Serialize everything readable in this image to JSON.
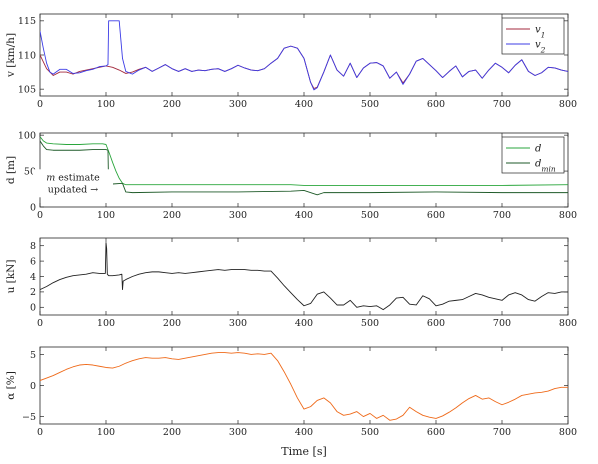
{
  "chart_data": [
    {
      "type": "line",
      "ylabel": "v [km/h]",
      "xlim": [
        0,
        800
      ],
      "ylim": [
        104,
        116
      ],
      "xticks": [
        0,
        100,
        200,
        300,
        400,
        500,
        600,
        700,
        800
      ],
      "yticks": [
        105,
        110,
        115
      ],
      "legend": {
        "placement": "top-right",
        "entries": [
          "v1",
          "v2"
        ]
      },
      "series": [
        {
          "name": "v1",
          "color": "#a3283c",
          "x": [
            0,
            5,
            10,
            15,
            20,
            30,
            40,
            50,
            60,
            70,
            80,
            90,
            100,
            110,
            120,
            130,
            140,
            150,
            160,
            170,
            180,
            190,
            200,
            210,
            220,
            230,
            240,
            250,
            260,
            270,
            280,
            290,
            300,
            310,
            320,
            330,
            340,
            350,
            360,
            370,
            380,
            390,
            400,
            410,
            415,
            420,
            430,
            440,
            450,
            460,
            470,
            480,
            490,
            500,
            510,
            520,
            530,
            540,
            550,
            560,
            570,
            580,
            590,
            600,
            610,
            620,
            630,
            640,
            650,
            660,
            670,
            680,
            690,
            700,
            710,
            720,
            730,
            740,
            750,
            760,
            770,
            780,
            790,
            800
          ],
          "values": [
            110,
            109,
            108,
            107.5,
            107,
            107.5,
            107.5,
            107.2,
            107.6,
            107.8,
            108,
            108.2,
            108.4,
            108.2,
            107.8,
            107.3,
            107.5,
            107.9,
            108.2,
            107.6,
            108.1,
            108.6,
            108,
            107.6,
            108,
            107.6,
            107.8,
            107.7,
            107.9,
            108,
            107.6,
            108,
            108.5,
            108.1,
            107.8,
            107.7,
            108,
            108.8,
            109.5,
            111,
            111.3,
            111,
            109.5,
            106,
            105.1,
            105.3,
            107.5,
            110,
            107.8,
            106.9,
            108.8,
            106.7,
            108.1,
            108.8,
            108.9,
            108.4,
            106.6,
            107.5,
            105.9,
            107.2,
            109.1,
            109.5,
            108.6,
            107.7,
            106.7,
            107.6,
            108.4,
            106.8,
            107.6,
            107.8,
            106.6,
            107.8,
            108.8,
            108.2,
            107.4,
            108.5,
            109.3,
            107.6,
            107,
            107.4,
            108.2,
            108.1,
            107.8,
            107.6
          ]
        },
        {
          "name": "v2",
          "color": "#3c3ce6",
          "x": [
            0,
            5,
            10,
            15,
            20,
            30,
            40,
            50,
            60,
            70,
            80,
            90,
            100,
            103,
            104,
            120,
            125,
            130,
            140,
            150,
            160,
            170,
            180,
            190,
            200,
            210,
            220,
            230,
            240,
            250,
            260,
            270,
            280,
            290,
            300,
            310,
            320,
            330,
            340,
            350,
            360,
            370,
            380,
            390,
            400,
            410,
            415,
            420,
            430,
            440,
            450,
            460,
            470,
            480,
            490,
            500,
            510,
            520,
            530,
            540,
            550,
            560,
            570,
            580,
            590,
            600,
            610,
            620,
            630,
            640,
            650,
            660,
            670,
            680,
            690,
            700,
            710,
            720,
            730,
            740,
            750,
            760,
            770,
            780,
            790,
            800
          ],
          "values": [
            113.5,
            111,
            108.8,
            107.5,
            107.2,
            107.9,
            107.9,
            107.3,
            107.4,
            107.7,
            107.9,
            108.3,
            108.4,
            108.6,
            115,
            115,
            109.5,
            107.6,
            107.2,
            107.8,
            108.2,
            107.6,
            108.1,
            108.6,
            108,
            107.6,
            108,
            107.6,
            107.8,
            107.7,
            107.9,
            108,
            107.6,
            108,
            108.5,
            108.1,
            107.8,
            107.7,
            108,
            108.8,
            109.5,
            111,
            111.3,
            111,
            109.5,
            106,
            104.9,
            105.2,
            107.5,
            110,
            107.8,
            106.9,
            108.8,
            106.7,
            108.1,
            108.8,
            108.9,
            108.4,
            106.6,
            107.5,
            105.7,
            107.2,
            109.1,
            109.5,
            108.6,
            107.7,
            106.7,
            107.6,
            108.4,
            106.8,
            107.6,
            107.8,
            106.6,
            107.8,
            108.8,
            108.2,
            107.4,
            108.5,
            109.3,
            107.6,
            107,
            107.4,
            108.2,
            108.1,
            107.8,
            107.6
          ]
        }
      ]
    },
    {
      "type": "line",
      "ylabel": "d [m]",
      "xlim": [
        0,
        800
      ],
      "ylim": [
        0,
        103
      ],
      "xticks": [
        0,
        100,
        200,
        300,
        400,
        500,
        600,
        700,
        800
      ],
      "yticks": [
        0,
        50,
        100
      ],
      "legend": {
        "placement": "top-right",
        "entries": [
          "d",
          "dmin"
        ]
      },
      "annotation": {
        "text": [
          "m estimate",
          "updated →"
        ],
        "x": 50,
        "y": 33
      },
      "series": [
        {
          "name": "d",
          "color": "#2aa63c",
          "x": [
            0,
            5,
            10,
            20,
            40,
            60,
            80,
            95,
            100,
            105,
            110,
            115,
            120,
            125,
            130,
            140,
            200,
            300,
            380,
            400,
            430,
            500,
            600,
            700,
            800
          ],
          "values": [
            98,
            92,
            89,
            88,
            87,
            87,
            88,
            88,
            87,
            75,
            62,
            50,
            40,
            33,
            31,
            31,
            31,
            31,
            31,
            30,
            30,
            30,
            30,
            30,
            31
          ]
        },
        {
          "name": "dmin",
          "color": "#1e5a28",
          "x": [
            0,
            5,
            10,
            20,
            40,
            60,
            80,
            95,
            100,
            103,
            104,
            110,
            125,
            130,
            140,
            200,
            300,
            380,
            400,
            420,
            430,
            500,
            600,
            700,
            800
          ],
          "values": [
            92,
            85,
            80,
            79,
            79,
            79,
            80,
            80,
            80,
            79,
            26,
            32,
            33,
            21,
            20,
            21,
            21,
            22,
            23,
            17,
            20,
            20,
            21,
            20,
            20
          ]
        }
      ]
    },
    {
      "type": "line",
      "ylabel": "u [kN]",
      "xlim": [
        0,
        800
      ],
      "ylim": [
        -1,
        9
      ],
      "xticks": [
        0,
        100,
        200,
        300,
        400,
        500,
        600,
        700,
        800
      ],
      "yticks": [
        0,
        2,
        4,
        6,
        8
      ],
      "series": [
        {
          "name": "",
          "color": "#222222",
          "x": [
            0,
            10,
            20,
            30,
            40,
            50,
            60,
            70,
            80,
            90,
            99,
            100,
            101,
            102,
            103,
            104,
            110,
            120,
            124,
            125,
            126,
            130,
            140,
            150,
            160,
            170,
            180,
            190,
            200,
            210,
            220,
            230,
            240,
            250,
            260,
            270,
            280,
            290,
            300,
            310,
            320,
            330,
            340,
            350,
            360,
            370,
            380,
            390,
            400,
            410,
            420,
            430,
            440,
            450,
            460,
            470,
            480,
            490,
            500,
            510,
            520,
            530,
            540,
            550,
            560,
            570,
            580,
            590,
            600,
            610,
            620,
            630,
            640,
            650,
            660,
            670,
            680,
            690,
            700,
            710,
            720,
            730,
            740,
            750,
            760,
            770,
            780,
            790,
            800
          ],
          "values": [
            2.3,
            2.7,
            3.2,
            3.6,
            3.9,
            4.1,
            4.2,
            4.3,
            4.5,
            4.4,
            4.4,
            8.4,
            7.6,
            4.3,
            4.2,
            4.1,
            4.1,
            4.2,
            4.3,
            2.3,
            3.4,
            3.6,
            4.0,
            4.3,
            4.5,
            4.6,
            4.6,
            4.5,
            4.4,
            4.5,
            4.4,
            4.5,
            4.6,
            4.7,
            4.8,
            4.9,
            4.8,
            4.9,
            4.9,
            4.9,
            4.8,
            4.8,
            4.7,
            4.7,
            3.8,
            2.8,
            1.9,
            1.0,
            0.2,
            0.5,
            1.7,
            2.0,
            1.2,
            0.3,
            0.3,
            0.9,
            0.0,
            0.2,
            0.1,
            0.2,
            -0.3,
            0.3,
            1.2,
            1.3,
            0.4,
            0.3,
            1.5,
            1.1,
            0.2,
            0.4,
            0.8,
            0.9,
            1.0,
            1.4,
            1.8,
            1.6,
            1.3,
            1.1,
            0.9,
            1.6,
            1.9,
            1.6,
            1.0,
            0.8,
            1.4,
            1.9,
            1.8,
            2.0,
            2.0
          ]
        }
      ]
    },
    {
      "type": "line",
      "ylabel": "α [%]",
      "xlabel": "Time [s]",
      "xlim": [
        0,
        800
      ],
      "ylim": [
        -6.2,
        6.2
      ],
      "xticks": [
        0,
        100,
        200,
        300,
        400,
        500,
        600,
        700,
        800
      ],
      "yticks": [
        -5,
        0,
        5
      ],
      "series": [
        {
          "name": "",
          "color": "#ef6a1a",
          "x": [
            0,
            10,
            20,
            30,
            40,
            50,
            60,
            70,
            80,
            90,
            100,
            110,
            120,
            130,
            140,
            150,
            160,
            170,
            180,
            190,
            200,
            210,
            220,
            230,
            240,
            250,
            260,
            270,
            280,
            290,
            300,
            310,
            320,
            330,
            340,
            350,
            360,
            370,
            380,
            390,
            400,
            410,
            420,
            430,
            440,
            450,
            460,
            470,
            480,
            490,
            500,
            510,
            520,
            530,
            540,
            550,
            560,
            570,
            580,
            590,
            600,
            610,
            620,
            630,
            640,
            650,
            660,
            670,
            680,
            690,
            700,
            710,
            720,
            730,
            740,
            750,
            760,
            770,
            780,
            790,
            800
          ],
          "values": [
            0.8,
            1.2,
            1.6,
            2.1,
            2.6,
            3.0,
            3.3,
            3.4,
            3.3,
            3.1,
            2.9,
            2.8,
            3.1,
            3.6,
            4.0,
            4.3,
            4.5,
            4.4,
            4.4,
            4.5,
            4.3,
            4.2,
            4.4,
            4.6,
            4.8,
            5.0,
            5.2,
            5.3,
            5.3,
            5.2,
            5.3,
            5.2,
            5.0,
            5.1,
            5.0,
            5.2,
            4.0,
            2.2,
            0.2,
            -2.0,
            -3.8,
            -3.4,
            -2.4,
            -2.0,
            -2.8,
            -4.2,
            -4.8,
            -4.6,
            -4.2,
            -5.0,
            -4.5,
            -5.3,
            -4.8,
            -5.6,
            -5.4,
            -4.8,
            -3.5,
            -4.2,
            -4.8,
            -5.1,
            -5.3,
            -4.9,
            -4.3,
            -3.6,
            -2.8,
            -2.1,
            -1.6,
            -2.2,
            -2.0,
            -2.6,
            -3.1,
            -2.7,
            -2.2,
            -1.6,
            -1.4,
            -1.2,
            -1.1,
            -0.9,
            -0.5,
            -0.3,
            -0.3
          ]
        }
      ]
    }
  ]
}
